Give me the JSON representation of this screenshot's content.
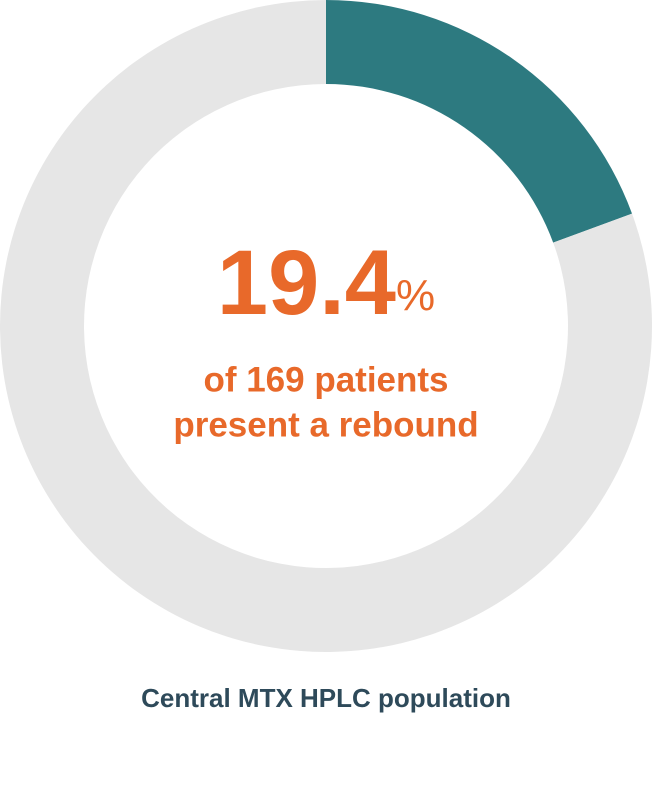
{
  "chart_data": {
    "type": "donut",
    "values": [
      19.4,
      80.6
    ],
    "value_labels": [
      "19.4%",
      null
    ],
    "colors": [
      "#2d7a80",
      "#e6e6e6"
    ],
    "annotation": [
      "of 169 patients",
      "present a rebound"
    ],
    "caption": "Central MTX HPLC population"
  }
}
